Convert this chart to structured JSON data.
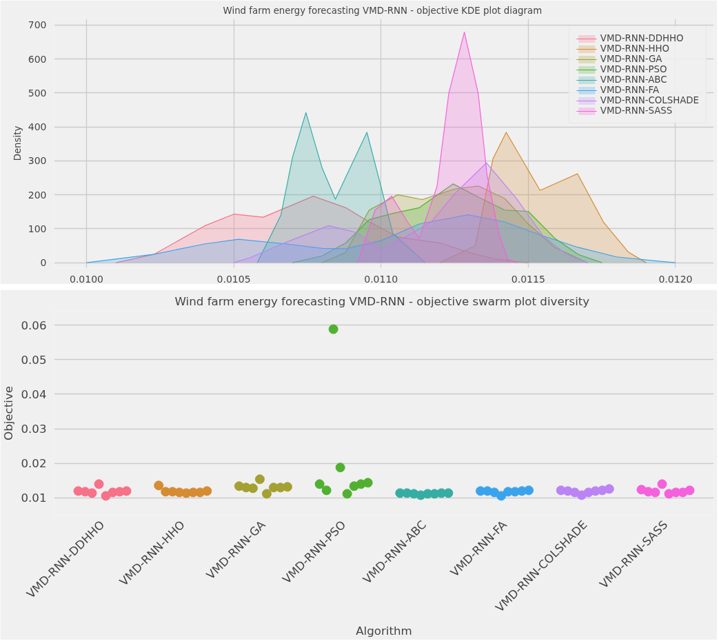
{
  "chart_data": [
    {
      "type": "area",
      "title": "Wind farm energy forecasting VMD-RNN -  objective KDE plot diagram",
      "ylabel": "Density",
      "xlim": [
        0.00989,
        0.01213
      ],
      "xticks": [
        {
          "value": 0.01,
          "label": "0.0100"
        },
        {
          "value": 0.0105,
          "label": "0.0105"
        },
        {
          "value": 0.011,
          "label": "0.0110"
        },
        {
          "value": 0.0115,
          "label": "0.0115"
        },
        {
          "value": 0.012,
          "label": "0.0120"
        }
      ],
      "ylim": [
        -15,
        718
      ],
      "yticks": [
        0,
        100,
        200,
        300,
        400,
        500,
        600,
        700
      ],
      "grid": true,
      "legend": "top right",
      "series": [
        {
          "name": "VMD-RNN-DDHHO",
          "color": "#f77189",
          "x": [
            0.0101,
            0.01023,
            0.0104,
            0.0105,
            0.0106,
            0.01077,
            0.01088,
            0.01096,
            0.01106,
            0.0112,
            0.0113,
            0.01138,
            0.01146,
            0.0115
          ],
          "values": [
            0,
            25,
            108,
            143,
            134,
            196,
            162,
            120,
            75,
            58,
            30,
            12,
            3,
            0
          ]
        },
        {
          "name": "VMD-RNN-HHO",
          "color": "#d58c32",
          "x": [
            0.0112,
            0.01132,
            0.011345,
            0.01138,
            0.011425,
            0.01154,
            0.011667,
            0.011755,
            0.01184,
            0.0119
          ],
          "values": [
            0,
            50,
            155,
            306,
            384,
            213,
            262,
            120,
            31,
            0
          ]
        },
        {
          "name": "VMD-RNN-GA",
          "color": "#a4a031",
          "x": [
            0.0108,
            0.01088,
            0.01096,
            0.011057,
            0.01114,
            0.01125,
            0.01133,
            0.01142,
            0.0115,
            0.01159,
            0.0117
          ],
          "values": [
            0,
            30,
            155,
            200,
            186,
            217,
            226,
            189,
            114,
            45,
            0
          ]
        },
        {
          "name": "VMD-RNN-PSO",
          "color": "#50b131",
          "x": [
            0.0107,
            0.0108,
            0.01088,
            0.01096,
            0.01104,
            0.01113,
            0.011245,
            0.01134,
            0.01142,
            0.0115,
            0.01159,
            0.01167,
            0.01175
          ],
          "values": [
            0,
            20,
            58,
            127,
            145,
            162,
            232,
            189,
            155,
            151,
            72,
            24,
            0
          ]
        },
        {
          "name": "VMD-RNN-ABC",
          "color": "#36ada4",
          "x": [
            0.01058,
            0.01066,
            0.0107,
            0.010745,
            0.0108,
            0.010845,
            0.010952,
            0.011,
            0.01104,
            0.01115
          ],
          "values": [
            0,
            140,
            312,
            442,
            279,
            187,
            384,
            224,
            86,
            0
          ]
        },
        {
          "name": "VMD-RNN-FA",
          "color": "#3ba3ec",
          "x": [
            0.01,
            0.01023,
            0.0104,
            0.010516,
            0.01068,
            0.0108,
            0.01088,
            0.011,
            0.01113,
            0.011295,
            0.01142,
            0.01155,
            0.01167,
            0.0118,
            0.01196,
            0.012
          ],
          "values": [
            0,
            25,
            55,
            69,
            55,
            42,
            41,
            65,
            114,
            141,
            120,
            79,
            45,
            17,
            3,
            0
          ]
        },
        {
          "name": "VMD-RNN-COLSHADE",
          "color": "#bb83f4",
          "x": [
            0.0105,
            0.010556,
            0.01068,
            0.010822,
            0.01092,
            0.011,
            0.01117,
            0.01125,
            0.011358,
            0.01146,
            0.01155,
            0.01163,
            0.0117
          ],
          "values": [
            0,
            15,
            61,
            109,
            88,
            34,
            120,
            203,
            294,
            189,
            79,
            24,
            0
          ]
        },
        {
          "name": "VMD-RNN-SASS",
          "color": "#f561dd",
          "x": [
            0.01092,
            0.01098,
            0.011036,
            0.01109,
            0.01113,
            0.01119,
            0.01123,
            0.011283,
            0.01133,
            0.01136,
            0.0114,
            0.01143,
            0.01146
          ],
          "values": [
            0,
            155,
            196,
            120,
            72,
            224,
            499,
            679,
            499,
            258,
            86,
            10,
            0
          ]
        }
      ]
    },
    {
      "type": "scatter",
      "title": "Wind farm energy forecasting VMD-RNN -  objective swarm plot diversity",
      "xlabel": "Algorithm",
      "ylabel": "Objective",
      "categories": [
        "VMD-RNN-DDHHO",
        "VMD-RNN-HHO",
        "VMD-RNN-GA",
        "VMD-RNN-PSO",
        "VMD-RNN-ABC",
        "VMD-RNN-FA",
        "VMD-RNN-COLSHADE",
        "VMD-RNN-SASS"
      ],
      "ylim": [
        0.005,
        0.064
      ],
      "yticks": [
        0.01,
        0.02,
        0.03,
        0.04,
        0.05,
        0.06
      ],
      "grid": "y",
      "marker": "circle",
      "series": [
        {
          "color": "#f77189",
          "x": [
            "VMD-RNN-DDHHO",
            "VMD-RNN-DDHHO",
            "VMD-RNN-DDHHO",
            "VMD-RNN-DDHHO",
            "VMD-RNN-DDHHO",
            "VMD-RNN-DDHHO",
            "VMD-RNN-DDHHO",
            "VMD-RNN-DDHHO"
          ],
          "values": [
            0.012,
            0.0118,
            0.0114,
            0.014,
            0.0106,
            0.0116,
            0.0118,
            0.012
          ]
        },
        {
          "color": "#d58c32",
          "x": [
            "VMD-RNN-HHO",
            "VMD-RNN-HHO",
            "VMD-RNN-HHO",
            "VMD-RNN-HHO",
            "VMD-RNN-HHO",
            "VMD-RNN-HHO",
            "VMD-RNN-HHO",
            "VMD-RNN-HHO"
          ],
          "values": [
            0.0136,
            0.0118,
            0.0118,
            0.0116,
            0.0114,
            0.0116,
            0.0116,
            0.012
          ]
        },
        {
          "color": "#a4a031",
          "x": [
            "VMD-RNN-GA",
            "VMD-RNN-GA",
            "VMD-RNN-GA",
            "VMD-RNN-GA",
            "VMD-RNN-GA",
            "VMD-RNN-GA",
            "VMD-RNN-GA",
            "VMD-RNN-GA"
          ],
          "values": [
            0.0134,
            0.013,
            0.0128,
            0.0154,
            0.0112,
            0.013,
            0.013,
            0.0132
          ]
        },
        {
          "color": "#50b131",
          "x": [
            "VMD-RNN-PSO",
            "VMD-RNN-PSO",
            "VMD-RNN-PSO",
            "VMD-RNN-PSO",
            "VMD-RNN-PSO",
            "VMD-RNN-PSO",
            "VMD-RNN-PSO",
            "VMD-RNN-PSO"
          ],
          "values": [
            0.014,
            0.0122,
            0.0588,
            0.0188,
            0.0112,
            0.0134,
            0.014,
            0.0144
          ]
        },
        {
          "color": "#36ada4",
          "x": [
            "VMD-RNN-ABC",
            "VMD-RNN-ABC",
            "VMD-RNN-ABC",
            "VMD-RNN-ABC",
            "VMD-RNN-ABC",
            "VMD-RNN-ABC",
            "VMD-RNN-ABC",
            "VMD-RNN-ABC"
          ],
          "values": [
            0.0114,
            0.0114,
            0.0112,
            0.0108,
            0.0112,
            0.0112,
            0.0114,
            0.0114
          ]
        },
        {
          "color": "#3ba3ec",
          "x": [
            "VMD-RNN-FA",
            "VMD-RNN-FA",
            "VMD-RNN-FA",
            "VMD-RNN-FA",
            "VMD-RNN-FA",
            "VMD-RNN-FA",
            "VMD-RNN-FA",
            "VMD-RNN-FA"
          ],
          "values": [
            0.012,
            0.012,
            0.0116,
            0.0106,
            0.0118,
            0.0118,
            0.012,
            0.0122
          ]
        },
        {
          "color": "#bb83f4",
          "x": [
            "VMD-RNN-COLSHADE",
            "VMD-RNN-COLSHADE",
            "VMD-RNN-COLSHADE",
            "VMD-RNN-COLSHADE",
            "VMD-RNN-COLSHADE",
            "VMD-RNN-COLSHADE",
            "VMD-RNN-COLSHADE",
            "VMD-RNN-COLSHADE"
          ],
          "values": [
            0.0122,
            0.012,
            0.0116,
            0.0108,
            0.0116,
            0.012,
            0.0122,
            0.0126
          ]
        },
        {
          "color": "#f561dd",
          "x": [
            "VMD-RNN-SASS",
            "VMD-RNN-SASS",
            "VMD-RNN-SASS",
            "VMD-RNN-SASS",
            "VMD-RNN-SASS",
            "VMD-RNN-SASS",
            "VMD-RNN-SASS",
            "VMD-RNN-SASS"
          ],
          "values": [
            0.0124,
            0.0118,
            0.0116,
            0.014,
            0.0112,
            0.0116,
            0.0116,
            0.0122
          ]
        }
      ]
    }
  ]
}
